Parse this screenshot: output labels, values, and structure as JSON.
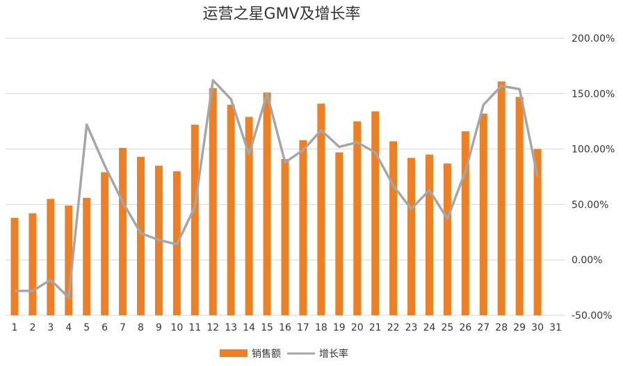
{
  "chart_data": {
    "type": "bar",
    "title": "运营之星GMV及增长率",
    "categories": [
      "1",
      "2",
      "3",
      "4",
      "5",
      "6",
      "7",
      "8",
      "9",
      "10",
      "11",
      "12",
      "13",
      "14",
      "15",
      "16",
      "17",
      "18",
      "19",
      "20",
      "21",
      "22",
      "23",
      "24",
      "25",
      "26",
      "27",
      "28",
      "29",
      "30",
      "31"
    ],
    "series": [
      {
        "name": "销售额",
        "type": "bar",
        "color": "#EE7F22",
        "values": [
          38,
          42,
          55,
          49,
          56,
          79,
          101,
          93,
          85,
          80,
          122,
          155,
          140,
          129,
          151,
          91,
          108,
          141,
          97,
          125,
          134,
          107,
          92,
          95,
          87,
          116,
          132,
          161,
          147,
          100,
          null
        ]
      },
      {
        "name": "增长率",
        "type": "line",
        "color": "#A6A6A6",
        "values": [
          -0.28,
          -0.28,
          -0.18,
          -0.34,
          1.22,
          0.85,
          0.52,
          0.24,
          0.18,
          0.14,
          0.48,
          1.62,
          1.45,
          0.95,
          1.5,
          0.88,
          0.99,
          1.17,
          1.02,
          1.06,
          0.97,
          0.67,
          0.46,
          0.63,
          0.37,
          0.8,
          1.4,
          1.57,
          1.54,
          0.75,
          null
        ]
      }
    ],
    "y_right": {
      "min": -0.5,
      "max": 2.0,
      "ticks": [
        "200.00%",
        "150.00%",
        "100.00%",
        "50.00%",
        "0.00%",
        "-50.00%"
      ]
    },
    "y_left_bar_range": [
      -50,
      200
    ],
    "grid": true,
    "legend_position": "bottom"
  }
}
